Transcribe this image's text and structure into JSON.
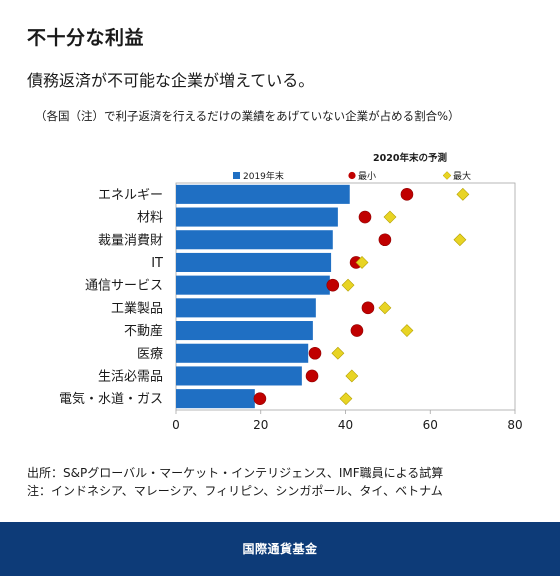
{
  "header": {
    "title": "不十分な利益",
    "subtitle": "債務返済が不可能な企業が増えている。",
    "note": "（各国（注）で利子返済を行えるだけの業績をあげていない企業が占める割合%）"
  },
  "chart_data": {
    "type": "bar",
    "orientation": "horizontal",
    "categories": [
      "エネルギー",
      "材料",
      "裁量消費財",
      "IT",
      "通信サービス",
      "工業製品",
      "不動産",
      "医療",
      "生活必需品",
      "電気・水道・ガス"
    ],
    "legend_title": "2020年末の予測",
    "series": [
      {
        "name": "2019年末",
        "marker": "bar",
        "color": "#1f6fc3",
        "values": [
          41.0,
          38.2,
          37.0,
          36.6,
          36.3,
          33.0,
          32.3,
          31.2,
          29.7,
          18.6
        ]
      },
      {
        "name": "最小",
        "marker": "circle",
        "color": "#c00000",
        "values": [
          54.5,
          44.6,
          49.3,
          42.5,
          37.0,
          45.3,
          42.7,
          32.8,
          32.1,
          19.8
        ]
      },
      {
        "name": "最大",
        "marker": "diamond",
        "color": "#e8d424",
        "values": [
          67.7,
          50.5,
          67.0,
          43.9,
          40.6,
          49.3,
          54.5,
          38.2,
          41.5,
          40.1
        ]
      }
    ],
    "xlim": [
      0,
      80
    ],
    "xticks": [
      0,
      20,
      40,
      60,
      80
    ],
    "grid": false,
    "legend_position": "top"
  },
  "footer": {
    "source": "出所：S&Pグローバル・マーケット・インテリジェンス、IMF職員による試算",
    "note": "注：インドネシア、マレーシア、フィリピン、シンガポール、タイ、ベトナム",
    "org": "国際通貨基金"
  },
  "colors": {
    "footer_band": "#0d3b78",
    "text": "#1a1a1a",
    "axis": "#a6a6a6"
  }
}
